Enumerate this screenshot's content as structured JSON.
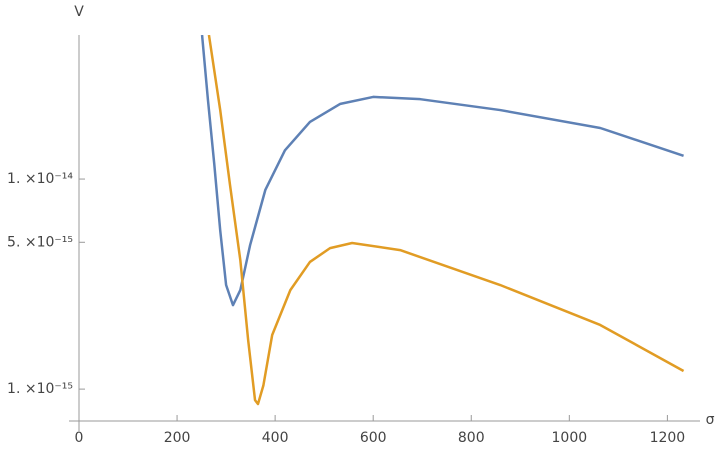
{
  "chart_data": {
    "type": "line",
    "x_label": "σ",
    "y_label": "V",
    "ylog": true,
    "xlim": [
      0,
      1240
    ],
    "xticks": [
      0,
      200,
      400,
      600,
      800,
      1000,
      1200
    ],
    "ylim": [
      7.05e-16,
      4.85e-14
    ],
    "yticks": [
      {
        "value": 1e-15,
        "label": "1. ×10⁻¹⁵"
      },
      {
        "value": 5e-15,
        "label": "5. ×10⁻¹⁵"
      },
      {
        "value": 1e-14,
        "label": "1. ×10⁻¹⁴"
      }
    ],
    "series": [
      {
        "color": "#5e81b5",
        "x": [
          251,
          263,
          276,
          288,
          300,
          314,
          329,
          349,
          380,
          420,
          471,
          533,
          600,
          696,
          859,
          1063,
          1233
        ],
        "values": [
          4.85e-14,
          2.38e-14,
          1.17e-14,
          5.7e-15,
          3.13e-15,
          2.51e-15,
          2.96e-15,
          4.85e-15,
          8.87e-15,
          1.37e-14,
          1.87e-14,
          2.28e-14,
          2.46e-14,
          2.4e-14,
          2.13e-14,
          1.75e-14,
          1.29e-14
        ]
      },
      {
        "color": "#e19c24",
        "x": [
          265,
          288,
          308,
          329,
          345,
          359,
          365,
          376,
          394,
          431,
          471,
          512,
          557,
          655,
          859,
          1063,
          1233
        ],
        "values": [
          4.85e-14,
          2.13e-14,
          9.36e-15,
          4.11e-15,
          1.71e-15,
          8.86e-16,
          8.49e-16,
          1.04e-15,
          1.81e-15,
          2.96e-15,
          4.03e-15,
          4.69e-15,
          4.96e-15,
          4.59e-15,
          3.13e-15,
          2.02e-15,
          1.22e-15
        ]
      }
    ]
  }
}
